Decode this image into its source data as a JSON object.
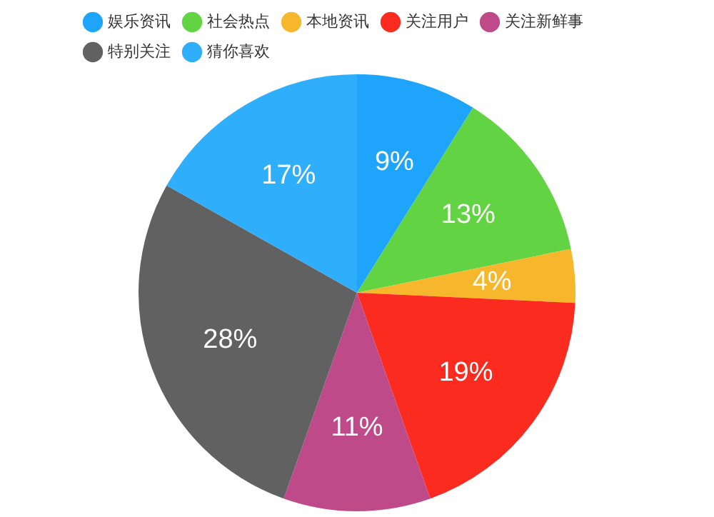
{
  "chart_data": {
    "type": "pie",
    "categories": [
      "娱乐资讯",
      "社会热点",
      "本地资讯",
      "关注用户",
      "关注新鲜事",
      "特别关注",
      "猜你喜欢"
    ],
    "values": [
      9,
      13,
      4,
      19,
      11,
      28,
      17
    ],
    "colors": [
      "#1ea4fb",
      "#62d444",
      "#f6b72c",
      "#fb2b20",
      "#bf4a89",
      "#616161",
      "#2eaefb"
    ],
    "value_labels": [
      "9%",
      "13%",
      "4%",
      "19%",
      "11%",
      "28%",
      "17%"
    ],
    "legend": "top"
  }
}
